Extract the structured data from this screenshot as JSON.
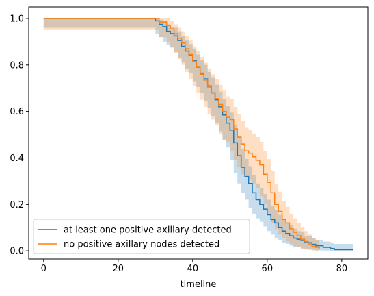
{
  "chart_data": {
    "type": "line",
    "subtype": "step-survival-with-confidence-bands",
    "title": "",
    "xlabel": "timeline",
    "ylabel": "",
    "xlim": [
      -4,
      87
    ],
    "ylim": [
      -0.035,
      1.05
    ],
    "xticks": [
      0,
      20,
      40,
      60,
      80
    ],
    "yticks": [
      0.0,
      0.2,
      0.4,
      0.6,
      0.8,
      1.0
    ],
    "xtick_labels": [
      "0",
      "20",
      "40",
      "60",
      "80"
    ],
    "ytick_labels": [
      "0.0",
      "0.2",
      "0.4",
      "0.6",
      "0.8",
      "1.0"
    ],
    "grid": false,
    "legend": "lower-left",
    "series": [
      {
        "name": "at least one positive axillary detected",
        "color": "#1f77b4",
        "x": [
          0,
          30,
          31,
          32,
          33,
          34,
          35,
          36,
          37,
          38,
          39,
          40,
          41,
          42,
          43,
          44,
          45,
          46,
          47,
          48,
          49,
          50,
          51,
          52,
          53,
          54,
          55,
          56,
          57,
          58,
          59,
          60,
          61,
          62,
          63,
          64,
          65,
          66,
          67,
          68,
          69,
          70,
          72,
          73,
          75,
          77,
          78,
          83
        ],
        "y": [
          1.0,
          0.99,
          0.975,
          0.965,
          0.945,
          0.935,
          0.925,
          0.905,
          0.88,
          0.86,
          0.84,
          0.82,
          0.79,
          0.765,
          0.74,
          0.71,
          0.68,
          0.65,
          0.62,
          0.585,
          0.55,
          0.52,
          0.465,
          0.41,
          0.36,
          0.32,
          0.29,
          0.25,
          0.22,
          0.2,
          0.18,
          0.155,
          0.135,
          0.12,
          0.1,
          0.085,
          0.075,
          0.065,
          0.055,
          0.05,
          0.045,
          0.035,
          0.028,
          0.022,
          0.015,
          0.01,
          0.005,
          0.005
        ],
        "ci_upper": [
          1.0,
          1.0,
          0.995,
          0.99,
          0.975,
          0.965,
          0.96,
          0.945,
          0.925,
          0.905,
          0.89,
          0.87,
          0.845,
          0.82,
          0.8,
          0.77,
          0.745,
          0.715,
          0.685,
          0.655,
          0.625,
          0.595,
          0.54,
          0.49,
          0.44,
          0.395,
          0.365,
          0.325,
          0.29,
          0.27,
          0.245,
          0.22,
          0.195,
          0.175,
          0.155,
          0.135,
          0.12,
          0.11,
          0.095,
          0.085,
          0.08,
          0.065,
          0.055,
          0.045,
          0.04,
          0.035,
          0.03,
          0.03
        ],
        "ci_lower": [
          1.0,
          0.96,
          0.935,
          0.92,
          0.9,
          0.885,
          0.875,
          0.855,
          0.83,
          0.81,
          0.785,
          0.765,
          0.73,
          0.705,
          0.68,
          0.645,
          0.615,
          0.58,
          0.55,
          0.515,
          0.475,
          0.445,
          0.39,
          0.335,
          0.29,
          0.25,
          0.22,
          0.185,
          0.16,
          0.14,
          0.125,
          0.105,
          0.085,
          0.07,
          0.055,
          0.045,
          0.035,
          0.03,
          0.022,
          0.018,
          0.015,
          0.01,
          0.007,
          0.004,
          0.002,
          0.001,
          0.0,
          0.0
        ]
      },
      {
        "name": "no positive axillary nodes detected",
        "color": "#ff7f0e",
        "x": [
          0,
          31,
          33,
          34,
          35,
          36,
          37,
          38,
          39,
          40,
          41,
          42,
          43,
          44,
          45,
          46,
          47,
          48,
          49,
          50,
          51,
          52,
          53,
          54,
          55,
          56,
          57,
          58,
          59,
          60,
          61,
          62,
          63,
          64,
          65,
          66,
          67,
          68,
          69,
          70,
          71,
          72,
          73,
          74
        ],
        "y": [
          1.0,
          0.985,
          0.97,
          0.955,
          0.935,
          0.915,
          0.895,
          0.87,
          0.845,
          0.815,
          0.79,
          0.76,
          0.735,
          0.705,
          0.68,
          0.655,
          0.63,
          0.6,
          0.575,
          0.565,
          0.525,
          0.49,
          0.46,
          0.43,
          0.42,
          0.405,
          0.39,
          0.37,
          0.33,
          0.295,
          0.25,
          0.2,
          0.17,
          0.135,
          0.12,
          0.095,
          0.08,
          0.065,
          0.05,
          0.04,
          0.03,
          0.02,
          0.015,
          0.01
        ],
        "ci_upper": [
          1.0,
          1.0,
          1.0,
          0.99,
          0.975,
          0.96,
          0.945,
          0.925,
          0.905,
          0.88,
          0.86,
          0.835,
          0.81,
          0.785,
          0.76,
          0.74,
          0.715,
          0.69,
          0.665,
          0.655,
          0.62,
          0.59,
          0.56,
          0.53,
          0.52,
          0.505,
          0.49,
          0.47,
          0.43,
          0.395,
          0.345,
          0.29,
          0.255,
          0.215,
          0.19,
          0.16,
          0.14,
          0.12,
          0.1,
          0.085,
          0.07,
          0.055,
          0.045,
          0.035
        ],
        "ci_lower": [
          1.0,
          0.95,
          0.92,
          0.9,
          0.875,
          0.85,
          0.825,
          0.8,
          0.77,
          0.74,
          0.71,
          0.68,
          0.65,
          0.62,
          0.59,
          0.565,
          0.54,
          0.505,
          0.48,
          0.47,
          0.43,
          0.39,
          0.36,
          0.33,
          0.32,
          0.305,
          0.29,
          0.27,
          0.235,
          0.2,
          0.16,
          0.12,
          0.095,
          0.07,
          0.055,
          0.04,
          0.03,
          0.02,
          0.015,
          0.01,
          0.005,
          0.003,
          0.001,
          0.0
        ]
      }
    ]
  }
}
